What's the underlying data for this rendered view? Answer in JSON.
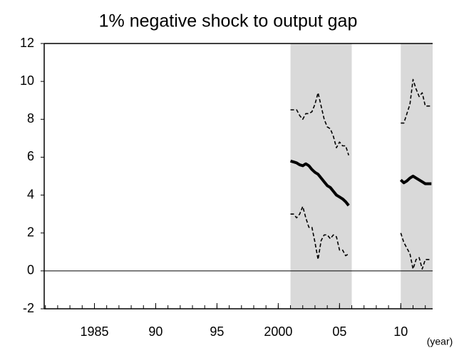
{
  "chart_data": {
    "type": "line",
    "title": "1% negative shock to output gap",
    "x_label": "(year)",
    "xlim": [
      1980.9,
      2012.6
    ],
    "ylim": [
      -2,
      12
    ],
    "xticks": [
      {
        "value": 1985,
        "label": "1985"
      },
      {
        "value": 1990,
        "label": "90"
      },
      {
        "value": 1995,
        "label": "95"
      },
      {
        "value": 2000,
        "label": "2000"
      },
      {
        "value": 2005,
        "label": "05"
      },
      {
        "value": 2010,
        "label": "10"
      }
    ],
    "yticks": [
      -2,
      0,
      2,
      4,
      6,
      8,
      10,
      12
    ],
    "reference_line": 0,
    "shaded_periods": [
      [
        2001,
        2006
      ],
      [
        2010,
        2012.6
      ]
    ],
    "shade_color": "#d9d9d9",
    "x": [
      2001,
      2001.25,
      2001.5,
      2001.75,
      2002,
      2002.25,
      2002.5,
      2002.75,
      2003,
      2003.25,
      2003.5,
      2003.75,
      2004,
      2004.25,
      2004.5,
      2004.75,
      2005,
      2005.25,
      2005.5,
      2005.75,
      2008,
      2010,
      2010.25,
      2010.5,
      2010.75,
      2011,
      2011.25,
      2011.5,
      2011.75,
      2012,
      2012.25,
      2012.5
    ],
    "series": [
      {
        "color": "#000000",
        "style": "dashed",
        "values": [
          8.5,
          8.5,
          8.5,
          8.2,
          8.0,
          8.3,
          8.3,
          8.4,
          8.8,
          9.4,
          8.7,
          8.0,
          7.6,
          7.5,
          7.1,
          6.5,
          6.8,
          6.6,
          6.6,
          6.1,
          null,
          7.8,
          7.8,
          8.3,
          8.8,
          10.1,
          9.6,
          9.2,
          9.4,
          8.7,
          8.7,
          8.7
        ]
      },
      {
        "color": "#000000",
        "style": "bold",
        "values": [
          5.8,
          5.75,
          5.7,
          5.6,
          5.55,
          5.65,
          5.55,
          5.35,
          5.2,
          5.1,
          4.9,
          4.7,
          4.5,
          4.4,
          4.2,
          4.0,
          3.9,
          3.8,
          3.65,
          3.45,
          null,
          4.8,
          4.65,
          4.75,
          4.9,
          5.0,
          4.9,
          4.8,
          4.7,
          4.6,
          4.6,
          4.6
        ]
      },
      {
        "color": "#000000",
        "style": "dashed",
        "values": [
          3.0,
          3.0,
          2.8,
          3.0,
          3.4,
          2.8,
          2.3,
          2.3,
          1.5,
          0.6,
          1.6,
          1.9,
          1.9,
          1.7,
          1.9,
          1.8,
          1.1,
          1.1,
          0.8,
          0.9,
          null,
          2.0,
          1.5,
          1.2,
          0.9,
          0.1,
          0.6,
          0.7,
          0.1,
          0.6,
          0.6,
          0.6
        ]
      }
    ]
  }
}
